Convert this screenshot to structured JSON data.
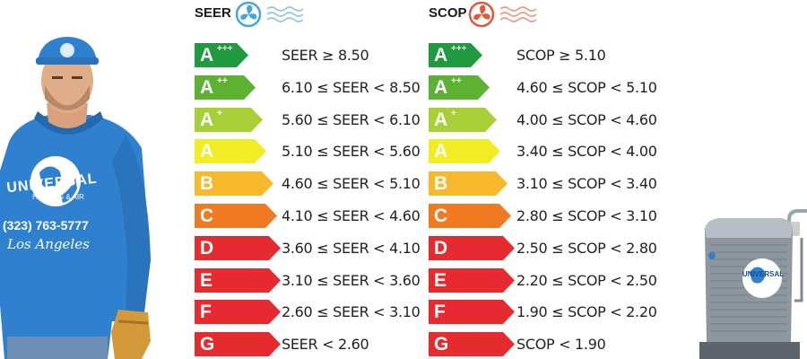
{
  "seer": {
    "title": "SEER",
    "icon": "fan-icon",
    "rows": [
      {
        "class": "A",
        "sup": "+++",
        "color": "#1f9a3e",
        "range": "SEER ≥ 8.50"
      },
      {
        "class": "A",
        "sup": "++",
        "color": "#5db233",
        "range": "6.10 ≤ SEER < 8.50"
      },
      {
        "class": "A",
        "sup": "+",
        "color": "#a9cf38",
        "range": "5.60 ≤ SEER < 6.10"
      },
      {
        "class": "A",
        "sup": "",
        "color": "#f2ec25",
        "range": "5.10 ≤ SEER < 5.60"
      },
      {
        "class": "B",
        "sup": "",
        "color": "#f7b82c",
        "range": "4.60 ≤ SEER < 5.10"
      },
      {
        "class": "C",
        "sup": "",
        "color": "#ef7a22",
        "range": "4.10 ≤ SEER < 4.60"
      },
      {
        "class": "D",
        "sup": "",
        "color": "#e52b2f",
        "range": "3.60 ≤ SEER < 4.10"
      },
      {
        "class": "E",
        "sup": "",
        "color": "#e52b2f",
        "range": "3.10 ≤ SEER < 3.60"
      },
      {
        "class": "F",
        "sup": "",
        "color": "#e52b2f",
        "range": "2.60 ≤ SEER < 3.10"
      },
      {
        "class": "G",
        "sup": "",
        "color": "#e52b2f",
        "range": "SEER < 2.60"
      }
    ]
  },
  "scop": {
    "title": "SCOP",
    "icon": "heat-fan-icon",
    "rows": [
      {
        "class": "A",
        "sup": "+++",
        "color": "#1f9a3e",
        "range": "SCOP ≥ 5.10"
      },
      {
        "class": "A",
        "sup": "++",
        "color": "#5db233",
        "range": "4.60 ≤ SCOP < 5.10"
      },
      {
        "class": "A",
        "sup": "+",
        "color": "#a9cf38",
        "range": "4.00 ≤ SCOP < 4.60"
      },
      {
        "class": "A",
        "sup": "",
        "color": "#f2ec25",
        "range": "3.40 ≤ SCOP < 4.00"
      },
      {
        "class": "B",
        "sup": "",
        "color": "#f7b82c",
        "range": "3.10 ≤ SCOP < 3.40"
      },
      {
        "class": "C",
        "sup": "",
        "color": "#ef7a22",
        "range": "2.80 ≤ SCOP < 3.10"
      },
      {
        "class": "D",
        "sup": "",
        "color": "#e52b2f",
        "range": "2.50 ≤ SCOP < 2.80"
      },
      {
        "class": "E",
        "sup": "",
        "color": "#e52b2f",
        "range": "2.20 ≤ SCOP < 2.50"
      },
      {
        "class": "F",
        "sup": "",
        "color": "#e52b2f",
        "range": "1.90 ≤ SCOP < 2.20"
      },
      {
        "class": "G",
        "sup": "",
        "color": "#e52b2f",
        "range": "SCOP < 1.90"
      }
    ]
  },
  "technician": {
    "brand_name": "UNIVERSAL",
    "brand_tagline": "HEATING & AIR",
    "phone": "(323) 763-5777",
    "city": "Los Angeles",
    "hoodie_color": "#2f80cf"
  },
  "ac_unit": {
    "brand_name": "UNIVERSAL"
  }
}
